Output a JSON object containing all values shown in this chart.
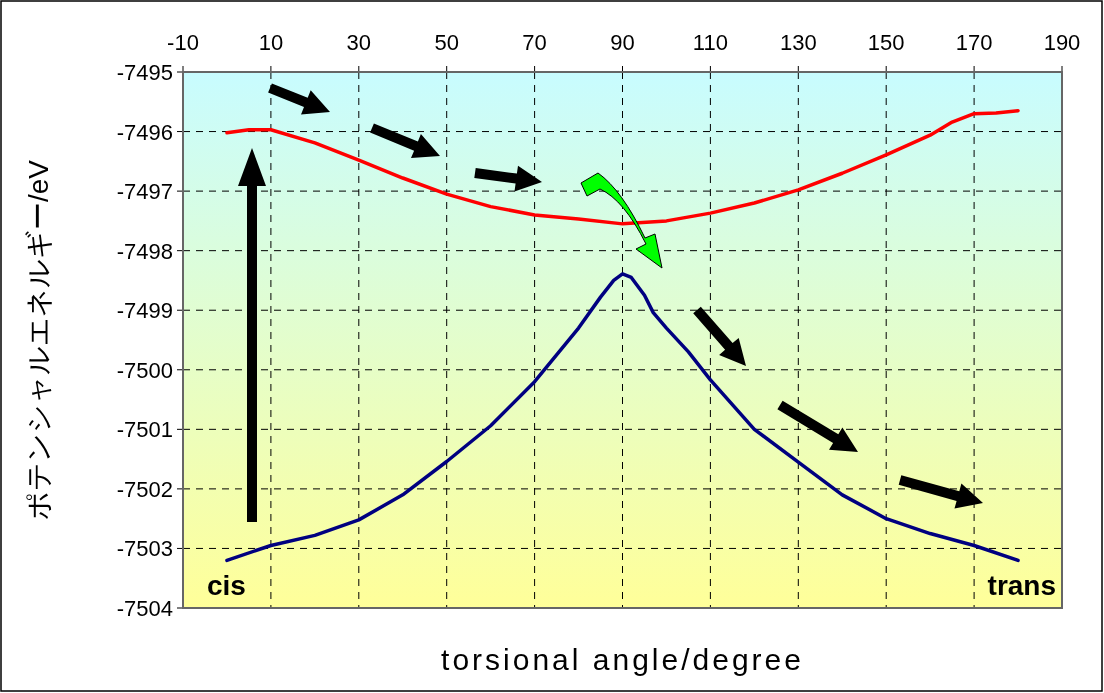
{
  "chart_data": {
    "type": "line",
    "xlabel": "torsional angle/degree",
    "ylabel": "ポテンシャルエネルギー/eV",
    "xlim": [
      -10,
      190
    ],
    "xticks": [
      -10,
      10,
      30,
      50,
      70,
      90,
      110,
      130,
      150,
      170,
      190
    ],
    "ylim": [
      -7504,
      -7495
    ],
    "yticks": [
      -7504,
      -7503,
      -7502,
      -7501,
      -7500,
      -7499,
      -7498,
      -7497,
      -7496,
      -7495
    ],
    "grid": true,
    "line_style": "solid",
    "marker": "none",
    "annotations": [
      {
        "text": "cis",
        "x": 0,
        "y": -7503.2
      },
      {
        "text": "trans",
        "x": 180,
        "y": -7503.2
      }
    ],
    "series": [
      {
        "color": "#ff0000",
        "x": [
          0,
          5,
          10,
          20,
          30,
          40,
          50,
          60,
          70,
          80,
          90,
          100,
          110,
          120,
          130,
          140,
          150,
          160,
          165,
          170,
          175,
          180
        ],
        "values": [
          -7496.02,
          -7495.97,
          -7495.97,
          -7496.19,
          -7496.48,
          -7496.78,
          -7497.05,
          -7497.26,
          -7497.4,
          -7497.47,
          -7497.55,
          -7497.5,
          -7497.37,
          -7497.2,
          -7496.98,
          -7496.7,
          -7496.39,
          -7496.06,
          -7495.84,
          -7495.7,
          -7495.69,
          -7495.65
        ]
      },
      {
        "color": "#000080",
        "x": [
          0,
          10,
          20,
          30,
          40,
          50,
          60,
          70,
          80,
          85,
          88,
          90,
          92,
          95,
          97,
          100,
          105,
          110,
          120,
          130,
          140,
          150,
          160,
          170,
          180
        ],
        "values": [
          -7503.2,
          -7502.95,
          -7502.78,
          -7502.52,
          -7502.1,
          -7501.54,
          -7500.94,
          -7500.2,
          -7499.3,
          -7498.78,
          -7498.5,
          -7498.39,
          -7498.45,
          -7498.75,
          -7499.04,
          -7499.3,
          -7499.7,
          -7500.17,
          -7501.0,
          -7501.55,
          -7502.1,
          -7502.5,
          -7502.75,
          -7502.95,
          -7503.2
        ]
      }
    ]
  }
}
